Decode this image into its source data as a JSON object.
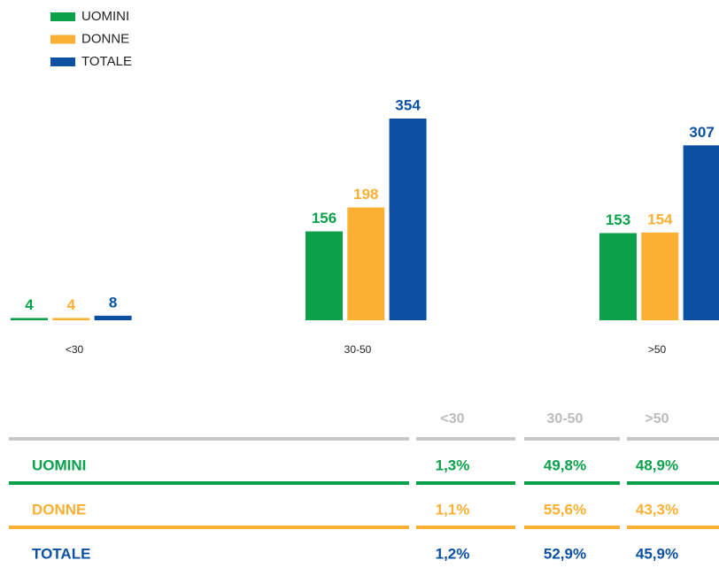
{
  "chart_data": {
    "type": "bar",
    "categories": [
      "<30",
      "30-50",
      ">50"
    ],
    "series": [
      {
        "name": "UOMINI",
        "color": "#0ba14b",
        "values": [
          4,
          156,
          153
        ]
      },
      {
        "name": "DONNE",
        "color": "#fbb034",
        "values": [
          4,
          198,
          154
        ]
      },
      {
        "name": "TOTALE",
        "color": "#0b50a1",
        "values": [
          8,
          354,
          307
        ]
      }
    ]
  },
  "table": {
    "columns": [
      "<30",
      "30-50",
      ">50"
    ],
    "rows": [
      {
        "label": "UOMINI",
        "color": "#0ba14b",
        "values": [
          "1,3%",
          "49,8%",
          "48,9%"
        ]
      },
      {
        "label": "DONNE",
        "color": "#fbb034",
        "values": [
          "1,1%",
          "55,6%",
          "43,3%"
        ]
      },
      {
        "label": "TOTALE",
        "color": "#0b50a1",
        "values": [
          "1,2%",
          "52,9%",
          "45,9%"
        ]
      }
    ]
  }
}
